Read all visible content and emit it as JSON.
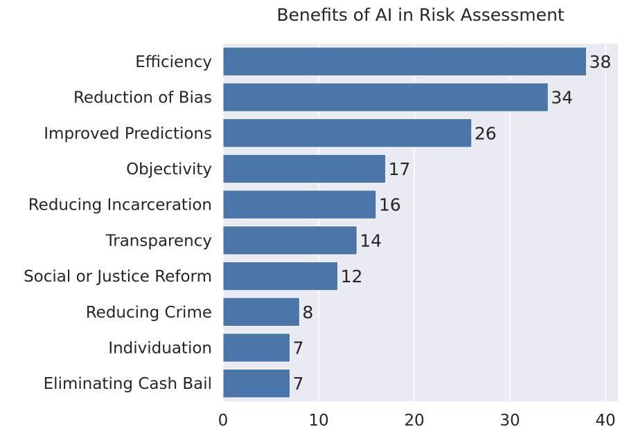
{
  "chart_data": {
    "type": "bar",
    "orientation": "horizontal",
    "title": "Benefits of AI in Risk Assessment",
    "xlabel": "",
    "ylabel": "",
    "categories": [
      "Efficiency",
      "Reduction of Bias",
      "Improved Predictions",
      "Objectivity",
      "Reducing Incarceration",
      "Transparency",
      "Social or Justice Reform",
      "Reducing Crime",
      "Individuation",
      "Eliminating Cash Bail"
    ],
    "values": [
      38,
      34,
      26,
      17,
      16,
      14,
      12,
      8,
      7,
      7
    ],
    "xlim": [
      0,
      41.3
    ],
    "xticks": [
      0,
      10,
      20,
      30,
      40
    ],
    "grid": true,
    "data_labels": true,
    "colors": {
      "bar": "#4a76aa",
      "plot_background": "#eaeaf2",
      "grid": "#ffffff",
      "text": "#262626"
    }
  }
}
